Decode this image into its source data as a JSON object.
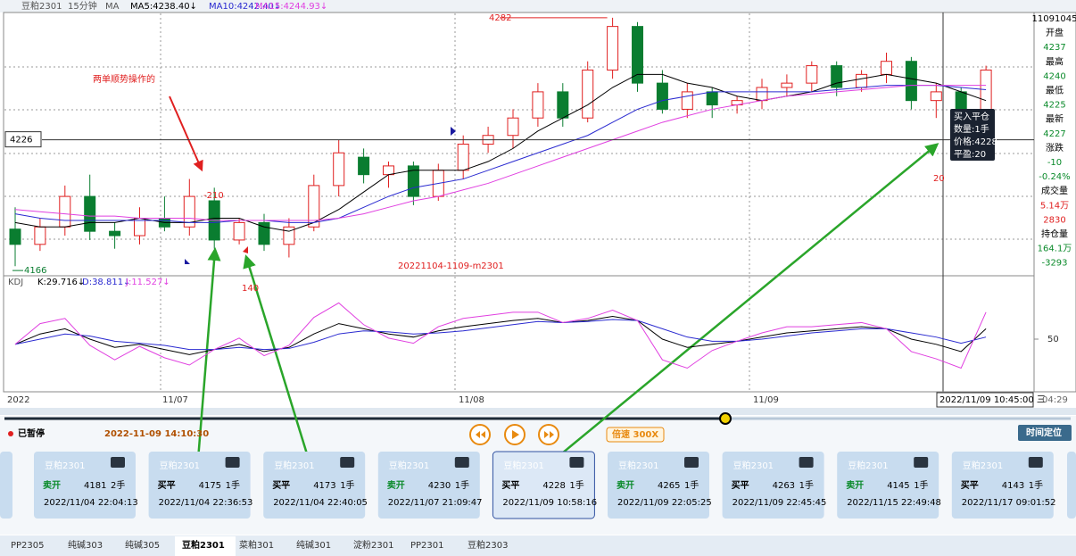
{
  "header": {
    "symbol": "豆粕2301",
    "period": "15分钟",
    "indicator": "MA",
    "ma5": "MA5:4238.40↓",
    "ma10": "MA10:4242.40↓",
    "ma15": "MA15:4244.93↓"
  },
  "price_chart": {
    "ylim": [
      4164,
      4284
    ],
    "high_marker": 4282,
    "low_marker": 4166,
    "crosshair_price": 4226,
    "candles": {
      "open": [
        4185,
        4178,
        4186,
        4200,
        4184,
        4182,
        4190,
        4186,
        4198,
        4180,
        4188,
        4178,
        4186,
        4205,
        4218,
        4210,
        4214,
        4200,
        4212,
        4224,
        4228,
        4236,
        4248,
        4236,
        4258,
        4278,
        4252,
        4240,
        4248,
        4242,
        4244,
        4250,
        4252,
        4260,
        4250,
        4256,
        4262,
        4244,
        4248,
        4228
      ],
      "high": [
        4195,
        4190,
        4205,
        4210,
        4188,
        4195,
        4200,
        4208,
        4204,
        4190,
        4192,
        4190,
        4210,
        4226,
        4222,
        4216,
        4216,
        4215,
        4228,
        4232,
        4240,
        4252,
        4252,
        4262,
        4282,
        4280,
        4258,
        4252,
        4250,
        4246,
        4254,
        4256,
        4262,
        4262,
        4258,
        4266,
        4264,
        4252,
        4250,
        4260
      ],
      "low": [
        4168,
        4175,
        4182,
        4180,
        4176,
        4178,
        4184,
        4182,
        4176,
        4178,
        4175,
        4172,
        4184,
        4200,
        4206,
        4204,
        4196,
        4198,
        4208,
        4220,
        4222,
        4232,
        4232,
        4234,
        4254,
        4248,
        4238,
        4236,
        4236,
        4238,
        4240,
        4246,
        4248,
        4246,
        4248,
        4252,
        4240,
        4236,
        4224,
        4226
      ],
      "close": [
        4178,
        4186,
        4200,
        4184,
        4182,
        4190,
        4186,
        4200,
        4180,
        4188,
        4178,
        4186,
        4205,
        4220,
        4210,
        4214,
        4200,
        4212,
        4224,
        4228,
        4236,
        4248,
        4236,
        4258,
        4278,
        4252,
        4240,
        4248,
        4242,
        4244,
        4250,
        4252,
        4260,
        4250,
        4256,
        4262,
        4244,
        4248,
        4228,
        4258
      ]
    },
    "series": [
      {
        "name": "MA5",
        "color": "#000000",
        "values": [
          4188,
          4186,
          4186,
          4188,
          4188,
          4190,
          4188,
          4188,
          4190,
          4190,
          4186,
          4184,
          4188,
          4194,
          4202,
          4210,
          4212,
          4212,
          4212,
          4216,
          4222,
          4230,
          4236,
          4242,
          4250,
          4256,
          4256,
          4252,
          4250,
          4246,
          4244,
          4246,
          4248,
          4252,
          4254,
          4256,
          4254,
          4252,
          4248,
          4244
        ]
      },
      {
        "name": "MA10",
        "color": "#2a2ad0",
        "values": [
          4192,
          4190,
          4189,
          4189,
          4189,
          4189,
          4189,
          4188,
          4188,
          4189,
          4189,
          4188,
          4188,
          4190,
          4195,
          4200,
          4204,
          4206,
          4208,
          4212,
          4216,
          4220,
          4224,
          4228,
          4234,
          4240,
          4244,
          4246,
          4248,
          4248,
          4248,
          4248,
          4248,
          4249,
          4250,
          4251,
          4251,
          4251,
          4250,
          4249
        ]
      },
      {
        "name": "MA15",
        "color": "#e040e0",
        "values": [
          4194,
          4193,
          4192,
          4191,
          4191,
          4190,
          4190,
          4190,
          4189,
          4189,
          4189,
          4189,
          4189,
          4190,
          4192,
          4195,
          4198,
          4200,
          4203,
          4206,
          4210,
          4214,
          4218,
          4222,
          4226,
          4230,
          4234,
          4237,
          4240,
          4242,
          4244,
          4246,
          4247,
          4248,
          4249,
          4250,
          4251,
          4251,
          4251,
          4251
        ]
      }
    ]
  },
  "annotations": {
    "note": "两单顺势操作的",
    "loss": "-210",
    "gain1": "140",
    "gain2": "20",
    "watermark": "20221104-1109-m2301"
  },
  "tooltip": [
    "买入平仓",
    "数量:1手",
    "价格:4228",
    "平盈:20"
  ],
  "right_panel": [
    {
      "text": "11091045",
      "color": "#000"
    },
    {
      "text": "开盘",
      "color": "#000"
    },
    {
      "text": "4237",
      "color": "#0a8a2a"
    },
    {
      "text": "最高",
      "color": "#000"
    },
    {
      "text": "4240",
      "color": "#0a8a2a"
    },
    {
      "text": "最低",
      "color": "#000"
    },
    {
      "text": "4225",
      "color": "#0a8a2a"
    },
    {
      "text": "最新",
      "color": "#000"
    },
    {
      "text": "4227",
      "color": "#0a8a2a"
    },
    {
      "text": "涨跌",
      "color": "#000"
    },
    {
      "text": "-10",
      "color": "#0a8a2a"
    },
    {
      "text": "-0.24%",
      "color": "#0a8a2a"
    },
    {
      "text": "成交量",
      "color": "#000"
    },
    {
      "text": "5.14万",
      "color": "#e02020"
    },
    {
      "text": "2830",
      "color": "#e02020"
    },
    {
      "text": "持仓量",
      "color": "#000"
    },
    {
      "text": "164.1万",
      "color": "#0a8a2a"
    },
    {
      "text": "-3293",
      "color": "#0a8a2a"
    }
  ],
  "kdj": {
    "title": "KDJ",
    "k_label": "K:29.716↓",
    "d_label": "D:38.811↓",
    "j_label": "J:11.527↓",
    "ylim": [
      0,
      100
    ],
    "yticks": [
      50
    ],
    "series": [
      {
        "name": "K",
        "color": "#000000",
        "values": [
          45,
          55,
          60,
          50,
          42,
          45,
          40,
          35,
          40,
          45,
          38,
          42,
          55,
          65,
          60,
          55,
          52,
          58,
          62,
          65,
          68,
          70,
          66,
          68,
          72,
          68,
          50,
          42,
          45,
          48,
          52,
          56,
          58,
          60,
          62,
          60,
          50,
          45,
          38,
          60
        ]
      },
      {
        "name": "D",
        "color": "#2a2ad0",
        "values": [
          45,
          50,
          55,
          53,
          48,
          46,
          44,
          40,
          40,
          42,
          40,
          41,
          47,
          55,
          58,
          57,
          55,
          56,
          58,
          61,
          64,
          67,
          66,
          67,
          69,
          68,
          60,
          52,
          48,
          48,
          50,
          53,
          56,
          58,
          60,
          60,
          56,
          52,
          46,
          52
        ]
      },
      {
        "name": "J",
        "color": "#e040e0",
        "values": [
          45,
          65,
          70,
          44,
          30,
          43,
          32,
          25,
          40,
          51,
          34,
          44,
          71,
          85,
          64,
          51,
          46,
          62,
          70,
          73,
          76,
          76,
          66,
          70,
          78,
          68,
          30,
          22,
          39,
          48,
          56,
          62,
          62,
          64,
          66,
          60,
          38,
          31,
          22,
          76
        ]
      }
    ]
  },
  "time_axis": {
    "labels": [
      "2022",
      "11/07",
      "11/08",
      "11/09"
    ],
    "cursor": "2022/11/09 10:45:00 三",
    "clock": "04:29"
  },
  "playback": {
    "status": "已暂停",
    "time": "2022-11-09 14:10:30",
    "speed": "倍速 300X",
    "locate": "时间定位"
  },
  "trades": [
    {
      "symbol": "豆粕2301",
      "action": "卖开",
      "price": "4181",
      "qty": "2手",
      "time": "2022/11/04 22:04:13"
    },
    {
      "symbol": "豆粕2301",
      "action": "买平",
      "price": "4175",
      "qty": "1手",
      "time": "2022/11/04 22:36:53"
    },
    {
      "symbol": "豆粕2301",
      "action": "买平",
      "price": "4173",
      "qty": "1手",
      "time": "2022/11/04 22:40:05"
    },
    {
      "symbol": "豆粕2301",
      "action": "卖开",
      "price": "4230",
      "qty": "1手",
      "time": "2022/11/07 21:09:47"
    },
    {
      "symbol": "豆粕2301",
      "action": "买平",
      "price": "4228",
      "qty": "1手",
      "time": "2022/11/09 10:58:16"
    },
    {
      "symbol": "豆粕2301",
      "action": "卖开",
      "price": "4265",
      "qty": "1手",
      "time": "2022/11/09 22:05:25"
    },
    {
      "symbol": "豆粕2301",
      "action": "买平",
      "price": "4263",
      "qty": "1手",
      "time": "2022/11/09 22:45:45"
    },
    {
      "symbol": "豆粕2301",
      "action": "卖开",
      "price": "4145",
      "qty": "1手",
      "time": "2022/11/15 22:49:48"
    },
    {
      "symbol": "豆粕2301",
      "action": "买平",
      "price": "4143",
      "qty": "1手",
      "time": "2022/11/17 09:01:52"
    }
  ],
  "tabs": [
    "PP2305",
    "纯碱303",
    "纯碱305",
    "豆粕2301",
    "菜粕301",
    "纯碱301",
    "淀粉2301",
    "PP2301",
    "豆粕2303"
  ]
}
